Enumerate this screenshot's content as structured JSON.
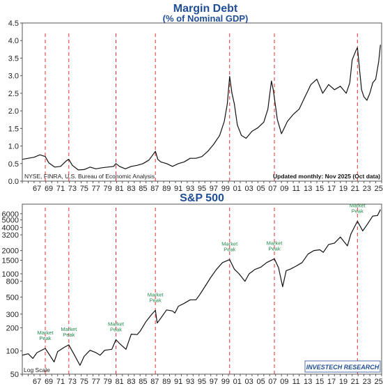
{
  "chart_data": [
    {
      "type": "line",
      "title": "Margin Debt",
      "subtitle": "(% of Nominal GDP)",
      "ylim": [
        0.0,
        4.5
      ],
      "yticks": [
        "0.0",
        "0.5",
        "1.0",
        "1.5",
        "2.0",
        "2.5",
        "3.0",
        "3.5",
        "4.0",
        "4.5"
      ],
      "xlim": [
        1965,
        2026
      ],
      "xtick_labels": [
        "67",
        "69",
        "71",
        "73",
        "75",
        "77",
        "79",
        "81",
        "83",
        "85",
        "87",
        "89",
        "91",
        "93",
        "95",
        "97",
        "99",
        "01",
        "03",
        "05",
        "07",
        "09",
        "11",
        "13",
        "15",
        "17",
        "19",
        "21",
        "23",
        "25"
      ],
      "grid": false,
      "source_note": "NYSE, FINRA, U.S. Bureau of Economic Analysis",
      "update_note": "Updated monthly: Nov 2025 (Oct data)",
      "market_peak_years": [
        1968.9,
        1972.9,
        1980.9,
        1987.6,
        2000.2,
        2007.8,
        2021.9
      ],
      "series": [
        {
          "x": [
            1965,
            1966,
            1967,
            1968,
            1968.9,
            1969.5,
            1970.5,
            1971.5,
            1972.5,
            1972.9,
            1973.5,
            1974.5,
            1975.5,
            1976.5,
            1977.5,
            1978.5,
            1979.5,
            1980.5,
            1980.9,
            1981.5,
            1982.5,
            1983.5,
            1984.5,
            1985.5,
            1986.5,
            1987.3,
            1987.6,
            1988,
            1988.5,
            1989.5,
            1990.5,
            1991.5,
            1992.5,
            1993.5,
            1994.5,
            1995.5,
            1996.5,
            1997.5,
            1998.5,
            1999.3,
            1999.8,
            2000.2,
            2000.6,
            2001,
            2001.5,
            2002.2,
            2003,
            2004,
            2005,
            2006,
            2006.7,
            2007.3,
            2007.6,
            2008.3,
            2009,
            2009.3,
            2010,
            2011,
            2012,
            2013,
            2014,
            2015,
            2016,
            2017,
            2018,
            2019,
            2020,
            2020.6,
            2021,
            2021.6,
            2021.9,
            2022.3,
            2022.6,
            2023,
            2023.5,
            2024,
            2024.5,
            2025,
            2025.5,
            2025.8
          ],
          "y": [
            0.62,
            0.65,
            0.68,
            0.75,
            0.7,
            0.52,
            0.4,
            0.42,
            0.58,
            0.62,
            0.45,
            0.32,
            0.33,
            0.4,
            0.35,
            0.38,
            0.4,
            0.42,
            0.5,
            0.42,
            0.35,
            0.42,
            0.45,
            0.5,
            0.6,
            0.78,
            0.85,
            0.62,
            0.55,
            0.5,
            0.42,
            0.5,
            0.55,
            0.65,
            0.65,
            0.7,
            0.85,
            1.05,
            1.3,
            1.7,
            2.2,
            2.98,
            2.5,
            2.2,
            1.6,
            1.3,
            1.22,
            1.42,
            1.52,
            1.68,
            2.05,
            2.85,
            2.6,
            1.75,
            1.35,
            1.45,
            1.7,
            1.9,
            2.05,
            2.4,
            2.75,
            2.9,
            2.5,
            2.75,
            2.6,
            2.7,
            2.5,
            2.8,
            3.45,
            3.7,
            3.8,
            3.1,
            2.6,
            2.4,
            2.3,
            2.5,
            2.8,
            2.9,
            3.4,
            3.88
          ]
        }
      ]
    },
    {
      "type": "line",
      "title": "S&P 500",
      "yscale": "log",
      "ylim": [
        50,
        8000
      ],
      "yticks": [
        "50",
        "100",
        "200",
        "300",
        "500",
        "800",
        "1000",
        "1500",
        "2000",
        "3200",
        "4000",
        "5000",
        "6000"
      ],
      "ytick_values": [
        50,
        100,
        200,
        300,
        500,
        800,
        1000,
        1500,
        2000,
        3200,
        4000,
        5000,
        6000
      ],
      "xlim": [
        1965,
        2026
      ],
      "xtick_labels": [
        "67",
        "69",
        "71",
        "73",
        "75",
        "77",
        "79",
        "81",
        "83",
        "85",
        "87",
        "89",
        "91",
        "93",
        "95",
        "97",
        "99",
        "01",
        "03",
        "05",
        "07",
        "09",
        "11",
        "13",
        "15",
        "17",
        "19",
        "21",
        "23",
        "25"
      ],
      "grid": false,
      "scale_note": "Log Scale",
      "logo_text": "INVESTECH RESEARCH",
      "peak_label": "Market Peak",
      "market_peaks": [
        {
          "year": 1968.9,
          "value": 108
        },
        {
          "year": 1972.9,
          "value": 120
        },
        {
          "year": 1980.9,
          "value": 140
        },
        {
          "year": 1987.6,
          "value": 336
        },
        {
          "year": 2000.2,
          "value": 1527
        },
        {
          "year": 2007.8,
          "value": 1565
        },
        {
          "year": 2021.9,
          "value": 4796
        }
      ],
      "series": [
        {
          "x": [
            1965,
            1966,
            1966.8,
            1967.5,
            1968.9,
            1970.4,
            1971,
            1972,
            1972.9,
            1973.8,
            1974.8,
            1975.5,
            1976.5,
            1977.5,
            1978.2,
            1979,
            1980.2,
            1980.9,
            1981.5,
            1982.6,
            1983.5,
            1984.5,
            1985,
            1986,
            1987,
            1987.6,
            1987.9,
            1988.5,
            1989.5,
            1990.5,
            1990.9,
            1991.5,
            1992.5,
            1993.5,
            1994.5,
            1995,
            1996,
            1997,
            1998,
            1999,
            2000.2,
            2001,
            2001.8,
            2002.8,
            2003.5,
            2004.5,
            2005.5,
            2006.5,
            2007.8,
            2008.5,
            2009.2,
            2009.8,
            2010.5,
            2011.5,
            2012.5,
            2013.5,
            2014.5,
            2015.5,
            2016.1,
            2017,
            2018,
            2019,
            2020.2,
            2020.8,
            2021.5,
            2021.9,
            2022.8,
            2023.5,
            2024.5,
            2025.3,
            2025.8
          ],
          "y": [
            88,
            92,
            80,
            95,
            108,
            72,
            98,
            110,
            120,
            90,
            65,
            85,
            102,
            95,
            88,
            102,
            105,
            140,
            125,
            105,
            165,
            163,
            180,
            240,
            300,
            336,
            230,
            265,
            340,
            330,
            310,
            380,
            415,
            460,
            460,
            520,
            680,
            900,
            1150,
            1400,
            1527,
            1150,
            1000,
            800,
            1000,
            1140,
            1220,
            1400,
            1565,
            1200,
            680,
            1100,
            1150,
            1260,
            1400,
            1800,
            2000,
            2050,
            1900,
            2400,
            2500,
            3000,
            2300,
            3300,
            4200,
            4796,
            3600,
            4300,
            5600,
            5700,
            6800
          ]
        }
      ]
    }
  ]
}
